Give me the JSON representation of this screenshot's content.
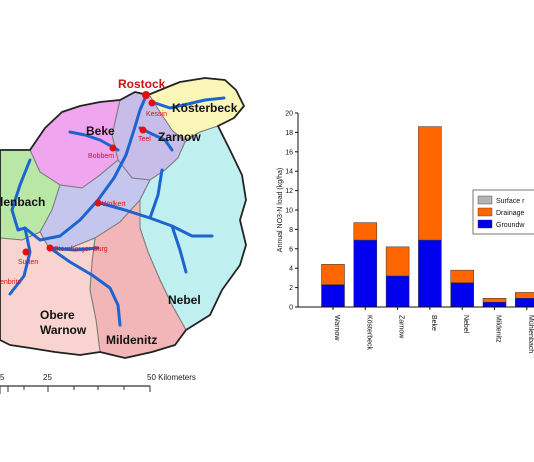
{
  "map": {
    "subbasins": [
      {
        "name": "Beke",
        "color": "#f0a6ee"
      },
      {
        "name": "Kösterbeck",
        "color": "#f9f6b8"
      },
      {
        "name": "Zarnow",
        "color": "#c7bde8"
      },
      {
        "name": "Mühlenbach",
        "color": "#b9e8a6"
      },
      {
        "name": "Warnow",
        "color": "#c4c6ee"
      },
      {
        "name": "Nebel",
        "color": "#bff0ef"
      },
      {
        "name": "Mildenitz",
        "color": "#f2b6b8"
      },
      {
        "name": "Obere Warnow",
        "color": "#f8d3cf"
      }
    ],
    "labels": {
      "rostock": "Rostock",
      "kosterbeck": "Kösterbeck",
      "beke": "Beke",
      "zarnow": "Zarnow",
      "muhlenbach": "lenbach",
      "nebel": "Nebel",
      "obere_1": "Obere",
      "obere_2": "Warnow",
      "mildenitz": "Mildenitz"
    },
    "stations": {
      "rostock": "Rostock",
      "kessin": "Kessin",
      "teel": "Teel",
      "bobbem": "Bobbem",
      "wolkert": "Wolkert",
      "sternberger": "Sternberger Burg",
      "sutten": "Sutten",
      "enbritz": "enbritz"
    },
    "scalebar": {
      "ticks": [
        "5",
        "25",
        "50 Kilometers"
      ]
    },
    "colors": {
      "river": "#1e64d0",
      "station": "#dd1111",
      "boundary": "#222222",
      "subboundary": "#7a7a7a"
    }
  },
  "chart_data": {
    "type": "bar",
    "stacked": true,
    "ylabel": "Annual NO3-N load (kg/ha)",
    "ylim": [
      0,
      20
    ],
    "yticks": [
      "0",
      "2",
      "4",
      "6",
      "8",
      "10",
      "12",
      "14",
      "16",
      "18",
      "20"
    ],
    "categories": [
      "Warnow",
      "Kösterbeck",
      "Zarnow",
      "Beke",
      "Nebel",
      "Mildenitz",
      "Mühlenbach"
    ],
    "series": [
      {
        "name": "Groundw",
        "color": "#0000ee",
        "values": [
          2.3,
          6.9,
          3.2,
          6.9,
          2.5,
          0.5,
          0.9
        ]
      },
      {
        "name": "Drainage",
        "color": "#ff6600",
        "values": [
          2.1,
          1.8,
          3.0,
          11.7,
          1.3,
          0.4,
          0.6
        ]
      },
      {
        "name": "Surface r",
        "color": "#b3b3b3",
        "values": [
          0.0,
          0.0,
          0.0,
          0.0,
          0.0,
          0.0,
          0.0
        ]
      }
    ],
    "legend": {
      "placement": "right",
      "order": [
        "Surface r",
        "Drainage",
        "Groundw"
      ]
    }
  }
}
